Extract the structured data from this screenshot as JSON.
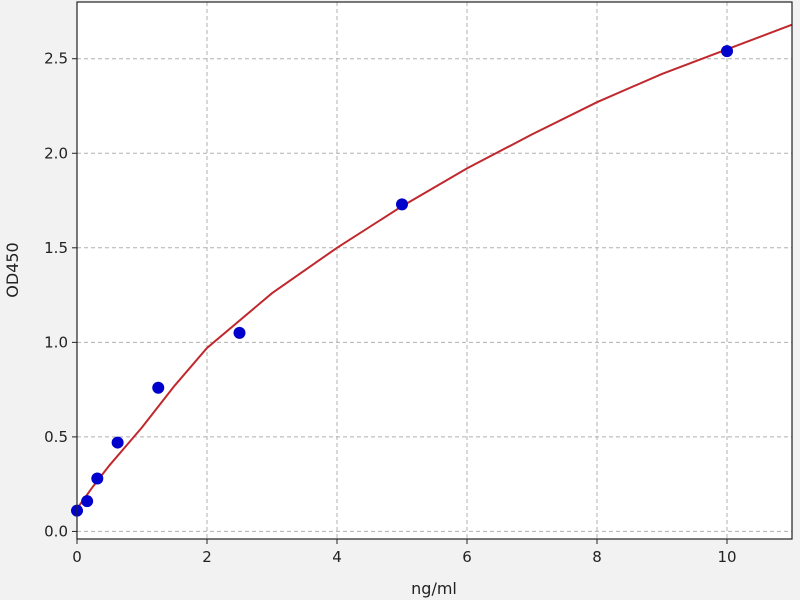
{
  "chart_data": {
    "type": "scatter",
    "title": "",
    "xlabel": "ng/ml",
    "ylabel": "OD450",
    "xlim": [
      0,
      11
    ],
    "ylim": [
      -0.04,
      2.8
    ],
    "xticks": [
      0,
      2,
      4,
      6,
      8,
      10
    ],
    "yticks": [
      0.0,
      0.5,
      1.0,
      1.5,
      2.0,
      2.5
    ],
    "grid": true,
    "points": {
      "x": [
        0,
        0.156,
        0.3125,
        0.625,
        1.25,
        2.5,
        5,
        10
      ],
      "y": [
        0.11,
        0.16,
        0.28,
        0.47,
        0.76,
        1.05,
        1.73,
        2.54
      ],
      "color": "#0000cc"
    },
    "fit_curve": {
      "x": [
        0,
        0.25,
        0.5,
        1,
        1.5,
        2,
        3,
        4,
        5,
        6,
        7,
        8,
        9,
        10,
        11
      ],
      "y": [
        0.12,
        0.24,
        0.35,
        0.55,
        0.77,
        0.97,
        1.26,
        1.5,
        1.72,
        1.92,
        2.1,
        2.27,
        2.42,
        2.55,
        2.68
      ],
      "color": "#c0282d"
    }
  }
}
